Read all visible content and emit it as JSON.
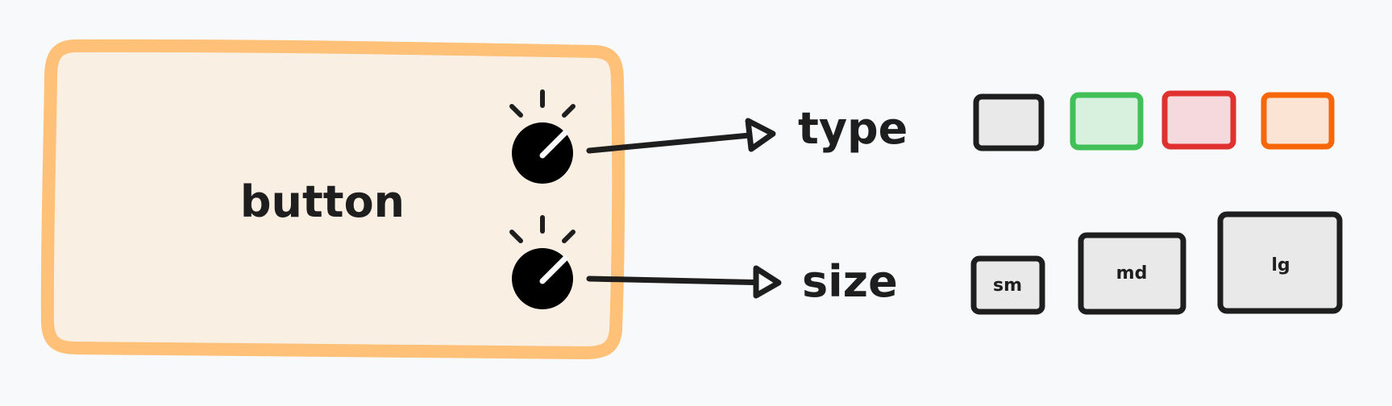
{
  "component": {
    "label": "button",
    "fill": "#f9efe3",
    "stroke": "#ffc078"
  },
  "props": [
    {
      "label": "type",
      "variants": [
        {
          "name": "default",
          "fill": "#e9e9e9",
          "stroke": "#1e1e1e"
        },
        {
          "name": "success",
          "fill": "#d8f0de",
          "stroke": "#40c057"
        },
        {
          "name": "danger",
          "fill": "#f5d9dc",
          "stroke": "#e03131"
        },
        {
          "name": "warning",
          "fill": "#fbe4d4",
          "stroke": "#f76707"
        }
      ]
    },
    {
      "label": "size",
      "variants": [
        {
          "name": "sm",
          "label": "sm",
          "fill": "#e9e9e9",
          "stroke": "#1e1e1e"
        },
        {
          "name": "md",
          "label": "md",
          "fill": "#e9e9e9",
          "stroke": "#1e1e1e"
        },
        {
          "name": "lg",
          "label": "lg",
          "fill": "#e9e9e9",
          "stroke": "#1e1e1e"
        }
      ]
    }
  ],
  "colors": {
    "background": "#f8f9fa",
    "ink": "#1e1e1e"
  },
  "icons": [
    "knob-icon",
    "arrow-icon"
  ]
}
